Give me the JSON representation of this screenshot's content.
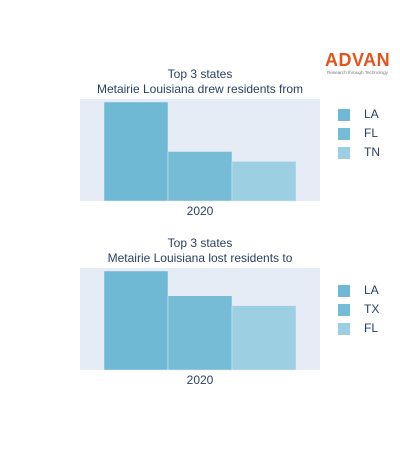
{
  "brand": {
    "name": "ADVAN",
    "tagline": "Research through Technology"
  },
  "chart_data": [
    {
      "type": "bar",
      "title": [
        "Top 3 states",
        "Metairie Louisiana drew residents from"
      ],
      "categories": [
        "2020"
      ],
      "series": [
        {
          "name": "LA",
          "values": [
            10.0
          ],
          "color": "#6fb9d5"
        },
        {
          "name": "FL",
          "values": [
            5.0
          ],
          "color": "#76bcd7"
        },
        {
          "name": "TN",
          "values": [
            4.0
          ],
          "color": "#9dcfe2"
        }
      ],
      "ylim": [
        0,
        10.3
      ],
      "grid": true,
      "legend": "right"
    },
    {
      "type": "bar",
      "title": [
        "Top 3 states",
        "Metairie Louisiana lost residents to"
      ],
      "categories": [
        "2020"
      ],
      "series": [
        {
          "name": "LA",
          "values": [
            10.0
          ],
          "color": "#6fb9d5"
        },
        {
          "name": "TX",
          "values": [
            7.5
          ],
          "color": "#76bcd7"
        },
        {
          "name": "FL",
          "values": [
            6.5
          ],
          "color": "#9dcfe2"
        }
      ],
      "ylim": [
        0,
        10.3
      ],
      "grid": true,
      "legend": "right"
    }
  ]
}
